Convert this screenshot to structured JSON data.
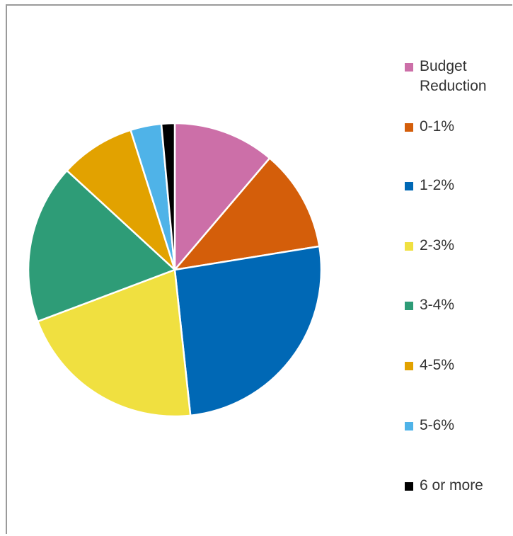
{
  "chart_data": {
    "type": "pie",
    "title": "",
    "categories": [
      "Budget Reduction",
      "0-1%",
      "1-2%",
      "2-3%",
      "3-4%",
      "4-5%",
      "5-6%",
      "6 or more"
    ],
    "values": [
      11.5,
      11.5,
      26.5,
      21.5,
      18,
      8.5,
      3.5,
      1.5
    ],
    "colors": [
      "#CC6FA8",
      "#D45E0A",
      "#0068B5",
      "#F0E040",
      "#2E9C77",
      "#E2A200",
      "#4FB3E8",
      "#000000"
    ],
    "legend_position": "right",
    "legend": [
      {
        "label": "Budget\nReduction",
        "color": "#CC6FA8"
      },
      {
        "label": "0-1%",
        "color": "#D45E0A"
      },
      {
        "label": "1-2%",
        "color": "#0068B5"
      },
      {
        "label": "2-3%",
        "color": "#F0E040"
      },
      {
        "label": "3-4%",
        "color": "#2E9C77"
      },
      {
        "label": "4-5%",
        "color": "#E2A200"
      },
      {
        "label": "5-6%",
        "color": "#4FB3E8"
      },
      {
        "label": "6 or more",
        "color": "#000000"
      }
    ]
  }
}
